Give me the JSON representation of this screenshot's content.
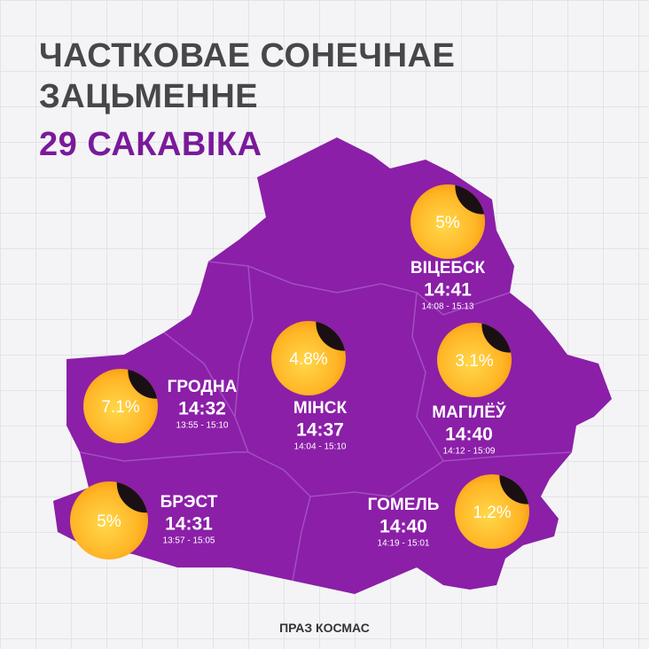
{
  "header": {
    "title_line1": "ЧАСТКОВАЕ СОНЕЧНАЕ",
    "title_line2": "ЗАЦЬМЕННЕ",
    "date": "29 САКАВІКА"
  },
  "cities": [
    {
      "name": "ВІЦЕБСК",
      "time": "14:41",
      "range": "14:08 - 15:13",
      "coverage": "5%"
    },
    {
      "name": "МІНСК",
      "time": "14:37",
      "range": "14:04 - 15:10",
      "coverage": "4.8%"
    },
    {
      "name": "ГРОДНА",
      "time": "14:32",
      "range": "13:55 - 15:10",
      "coverage": "7.1%"
    },
    {
      "name": "МАГІЛЁЎ",
      "time": "14:40",
      "range": "14:12 - 15:09",
      "coverage": "3.1%"
    },
    {
      "name": "БРЭСТ",
      "time": "14:31",
      "range": "13:57 - 15:05",
      "coverage": "5%"
    },
    {
      "name": "ГОМЕЛЬ",
      "time": "14:40",
      "range": "14:19 - 15:01",
      "coverage": "1.2%"
    }
  ],
  "footer": {
    "source": "ПРАЗ КОСМАС"
  }
}
